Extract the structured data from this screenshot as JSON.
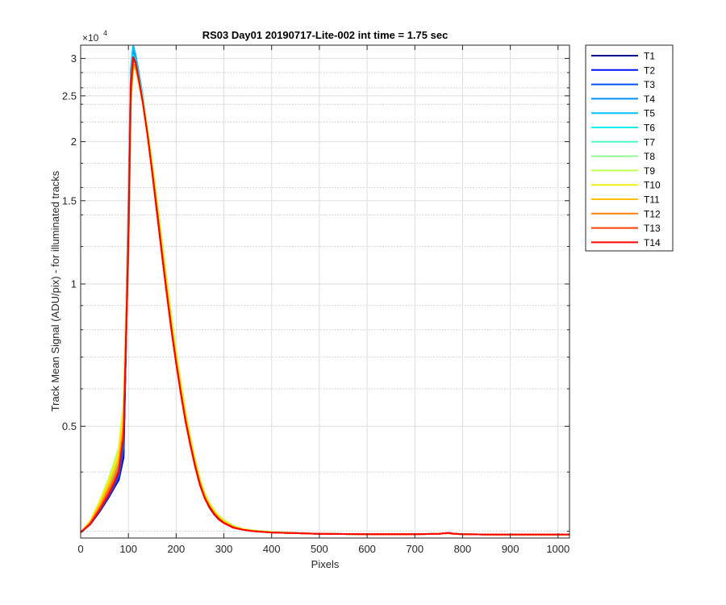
{
  "chart_data": {
    "type": "line",
    "title": "RS03 Day01 20190717-Lite-002 int time = 1.75 sec",
    "xlabel": "Pixels",
    "ylabel": "Track Mean Signal (ADU/pix) - for illuminated tracks",
    "y_exponent_label": "×10",
    "y_exponent_power": "4",
    "y_scale": "log",
    "xlim": [
      0,
      1024
    ],
    "ylim": [
      0.29,
      3.2
    ],
    "x_ticks": [
      0,
      100,
      200,
      300,
      400,
      500,
      600,
      700,
      800,
      900,
      1000
    ],
    "x_tick_labels": [
      "0",
      "100",
      "200",
      "300",
      "400",
      "500",
      "600",
      "700",
      "800",
      "900",
      "1000"
    ],
    "y_ticks": [
      0.5,
      1,
      1.5,
      2,
      2.5,
      3
    ],
    "y_tick_labels": [
      "0.5",
      "1",
      "1.5",
      "2",
      "2.5",
      "3"
    ],
    "y_minor_ticks": [
      0.3,
      0.4,
      0.6,
      0.7,
      0.8,
      0.9,
      1.2,
      1.4,
      1.6,
      1.8,
      2.2,
      2.4,
      2.6,
      2.8,
      3.2
    ],
    "grid": true,
    "legend_position": "outside-top-right",
    "x": [
      0,
      20,
      40,
      60,
      70,
      80,
      90,
      100,
      105,
      110,
      115,
      120,
      130,
      140,
      150,
      160,
      170,
      180,
      190,
      200,
      210,
      220,
      230,
      240,
      250,
      260,
      270,
      280,
      290,
      300,
      320,
      340,
      360,
      380,
      400,
      450,
      500,
      600,
      700,
      750,
      770,
      780,
      800,
      850,
      900,
      950,
      1000,
      1024
    ],
    "series": [
      {
        "name": "T1",
        "color": "#00008f",
        "values": [
          0.298,
          0.31,
          0.33,
          0.355,
          0.37,
          0.385,
          0.43,
          1.25,
          2.6,
          3.02,
          2.96,
          2.8,
          2.45,
          2.08,
          1.72,
          1.41,
          1.16,
          0.96,
          0.8,
          0.68,
          0.585,
          0.51,
          0.455,
          0.41,
          0.375,
          0.352,
          0.336,
          0.325,
          0.317,
          0.312,
          0.305,
          0.302,
          0.3,
          0.299,
          0.298,
          0.297,
          0.296,
          0.2955,
          0.2955,
          0.296,
          0.297,
          0.296,
          0.2955,
          0.295,
          0.295,
          0.295,
          0.295,
          0.295
        ]
      },
      {
        "name": "T2",
        "color": "#0010ff",
        "values": [
          0.298,
          0.31,
          0.33,
          0.356,
          0.372,
          0.388,
          0.44,
          1.3,
          2.65,
          3.05,
          2.98,
          2.82,
          2.47,
          2.1,
          1.74,
          1.42,
          1.17,
          0.965,
          0.805,
          0.683,
          0.588,
          0.512,
          0.457,
          0.412,
          0.377,
          0.353,
          0.337,
          0.326,
          0.318,
          0.312,
          0.305,
          0.302,
          0.3,
          0.299,
          0.298,
          0.297,
          0.296,
          0.2955,
          0.2955,
          0.296,
          0.297,
          0.296,
          0.2955,
          0.295,
          0.295,
          0.295,
          0.295,
          0.295
        ]
      },
      {
        "name": "T3",
        "color": "#0050ff",
        "values": [
          0.298,
          0.311,
          0.331,
          0.358,
          0.374,
          0.392,
          0.45,
          1.35,
          2.7,
          3.08,
          3.0,
          2.84,
          2.48,
          2.11,
          1.75,
          1.43,
          1.175,
          0.97,
          0.81,
          0.686,
          0.59,
          0.514,
          0.458,
          0.413,
          0.378,
          0.354,
          0.338,
          0.327,
          0.318,
          0.313,
          0.306,
          0.302,
          0.3,
          0.299,
          0.298,
          0.297,
          0.296,
          0.2955,
          0.2955,
          0.296,
          0.297,
          0.296,
          0.2955,
          0.295,
          0.295,
          0.295,
          0.295,
          0.295
        ]
      },
      {
        "name": "T4",
        "color": "#0090ff",
        "values": [
          0.298,
          0.311,
          0.333,
          0.362,
          0.38,
          0.4,
          0.47,
          1.45,
          2.8,
          3.15,
          3.04,
          2.86,
          2.5,
          2.12,
          1.76,
          1.44,
          1.18,
          0.975,
          0.813,
          0.689,
          0.592,
          0.516,
          0.46,
          0.414,
          0.379,
          0.355,
          0.338,
          0.327,
          0.319,
          0.313,
          0.306,
          0.302,
          0.3,
          0.299,
          0.298,
          0.297,
          0.296,
          0.2955,
          0.2955,
          0.296,
          0.297,
          0.296,
          0.2955,
          0.295,
          0.295,
          0.295,
          0.295,
          0.295
        ]
      },
      {
        "name": "T5",
        "color": "#00c0ff",
        "values": [
          0.298,
          0.312,
          0.336,
          0.368,
          0.388,
          0.412,
          0.49,
          1.5,
          2.85,
          3.2,
          3.06,
          2.87,
          2.5,
          2.12,
          1.76,
          1.44,
          1.18,
          0.975,
          0.814,
          0.69,
          0.593,
          0.517,
          0.46,
          0.415,
          0.38,
          0.355,
          0.339,
          0.327,
          0.319,
          0.313,
          0.306,
          0.302,
          0.3,
          0.299,
          0.298,
          0.297,
          0.296,
          0.2955,
          0.2955,
          0.296,
          0.297,
          0.296,
          0.2955,
          0.295,
          0.295,
          0.295,
          0.295,
          0.295
        ]
      },
      {
        "name": "T6",
        "color": "#10f0f0",
        "values": [
          0.298,
          0.313,
          0.34,
          0.375,
          0.398,
          0.425,
          0.51,
          1.4,
          2.7,
          3.05,
          2.97,
          2.81,
          2.47,
          2.11,
          1.76,
          1.45,
          1.19,
          0.985,
          0.822,
          0.697,
          0.598,
          0.521,
          0.463,
          0.417,
          0.381,
          0.356,
          0.34,
          0.328,
          0.32,
          0.314,
          0.306,
          0.302,
          0.3,
          0.299,
          0.298,
          0.297,
          0.296,
          0.2955,
          0.2955,
          0.296,
          0.297,
          0.296,
          0.2955,
          0.295,
          0.295,
          0.295,
          0.295,
          0.295
        ]
      },
      {
        "name": "T7",
        "color": "#50ffc0",
        "values": [
          0.298,
          0.314,
          0.343,
          0.38,
          0.405,
          0.435,
          0.53,
          1.35,
          2.6,
          2.98,
          2.93,
          2.79,
          2.46,
          2.11,
          1.77,
          1.46,
          1.2,
          0.995,
          0.83,
          0.703,
          0.603,
          0.525,
          0.466,
          0.419,
          0.383,
          0.357,
          0.341,
          0.329,
          0.321,
          0.315,
          0.307,
          0.303,
          0.3,
          0.299,
          0.298,
          0.297,
          0.296,
          0.2955,
          0.2955,
          0.296,
          0.297,
          0.296,
          0.2955,
          0.295,
          0.295,
          0.295,
          0.295,
          0.295
        ]
      },
      {
        "name": "T8",
        "color": "#90ff90",
        "values": [
          0.298,
          0.315,
          0.347,
          0.39,
          0.418,
          0.45,
          0.56,
          1.3,
          2.5,
          2.92,
          2.9,
          2.78,
          2.48,
          2.15,
          1.82,
          1.51,
          1.25,
          1.035,
          0.86,
          0.725,
          0.62,
          0.537,
          0.475,
          0.426,
          0.388,
          0.361,
          0.344,
          0.332,
          0.323,
          0.317,
          0.308,
          0.303,
          0.301,
          0.3,
          0.299,
          0.297,
          0.296,
          0.2955,
          0.2955,
          0.296,
          0.297,
          0.296,
          0.2955,
          0.295,
          0.295,
          0.295,
          0.295,
          0.295
        ]
      },
      {
        "name": "T9",
        "color": "#c0ff50",
        "values": [
          0.298,
          0.315,
          0.346,
          0.388,
          0.415,
          0.447,
          0.555,
          1.25,
          2.45,
          2.88,
          2.87,
          2.75,
          2.46,
          2.13,
          1.8,
          1.5,
          1.24,
          1.03,
          0.855,
          0.722,
          0.618,
          0.536,
          0.474,
          0.425,
          0.388,
          0.361,
          0.344,
          0.332,
          0.323,
          0.317,
          0.308,
          0.303,
          0.301,
          0.3,
          0.299,
          0.297,
          0.296,
          0.2955,
          0.2955,
          0.296,
          0.297,
          0.296,
          0.2955,
          0.295,
          0.295,
          0.295,
          0.295,
          0.295
        ]
      },
      {
        "name": "T10",
        "color": "#f0f010",
        "values": [
          0.298,
          0.314,
          0.345,
          0.385,
          0.41,
          0.44,
          0.54,
          1.2,
          2.4,
          2.85,
          2.85,
          2.73,
          2.44,
          2.11,
          1.78,
          1.48,
          1.22,
          1.01,
          0.843,
          0.713,
          0.611,
          0.531,
          0.47,
          0.422,
          0.386,
          0.359,
          0.343,
          0.331,
          0.322,
          0.316,
          0.307,
          0.303,
          0.301,
          0.299,
          0.298,
          0.297,
          0.296,
          0.2955,
          0.2955,
          0.296,
          0.297,
          0.296,
          0.2955,
          0.295,
          0.295,
          0.295,
          0.295,
          0.295
        ]
      },
      {
        "name": "T11",
        "color": "#ffc000",
        "values": [
          0.298,
          0.313,
          0.341,
          0.378,
          0.4,
          0.428,
          0.515,
          1.18,
          2.42,
          2.88,
          2.86,
          2.72,
          2.42,
          2.08,
          1.75,
          1.45,
          1.19,
          0.985,
          0.822,
          0.697,
          0.598,
          0.521,
          0.463,
          0.417,
          0.381,
          0.356,
          0.34,
          0.328,
          0.32,
          0.314,
          0.306,
          0.302,
          0.3,
          0.299,
          0.298,
          0.297,
          0.296,
          0.2955,
          0.2955,
          0.296,
          0.297,
          0.296,
          0.2955,
          0.295,
          0.295,
          0.295,
          0.295,
          0.295
        ]
      },
      {
        "name": "T12",
        "color": "#ff8000",
        "values": [
          0.298,
          0.312,
          0.337,
          0.37,
          0.39,
          0.415,
          0.495,
          1.15,
          2.45,
          2.92,
          2.89,
          2.74,
          2.42,
          2.07,
          1.73,
          1.43,
          1.175,
          0.97,
          0.81,
          0.686,
          0.59,
          0.514,
          0.458,
          0.413,
          0.378,
          0.354,
          0.338,
          0.327,
          0.318,
          0.313,
          0.306,
          0.302,
          0.3,
          0.299,
          0.298,
          0.297,
          0.296,
          0.2955,
          0.2955,
          0.296,
          0.297,
          0.296,
          0.2955,
          0.295,
          0.295,
          0.295,
          0.295,
          0.295
        ]
      },
      {
        "name": "T13",
        "color": "#ff4000",
        "values": [
          0.298,
          0.311,
          0.334,
          0.364,
          0.382,
          0.404,
          0.48,
          1.2,
          2.55,
          2.98,
          2.93,
          2.77,
          2.43,
          2.07,
          1.72,
          1.42,
          1.165,
          0.962,
          0.803,
          0.681,
          0.586,
          0.511,
          0.456,
          0.411,
          0.376,
          0.352,
          0.337,
          0.326,
          0.318,
          0.312,
          0.305,
          0.302,
          0.3,
          0.299,
          0.298,
          0.297,
          0.296,
          0.2955,
          0.2955,
          0.296,
          0.297,
          0.296,
          0.2955,
          0.295,
          0.295,
          0.295,
          0.295,
          0.295
        ]
      },
      {
        "name": "T14",
        "color": "#ff0000",
        "values": [
          0.298,
          0.31,
          0.332,
          0.36,
          0.378,
          0.4,
          0.475,
          1.28,
          2.65,
          3.02,
          2.95,
          2.78,
          2.43,
          2.07,
          1.72,
          1.42,
          1.165,
          0.962,
          0.803,
          0.681,
          0.586,
          0.511,
          0.456,
          0.411,
          0.376,
          0.352,
          0.337,
          0.326,
          0.318,
          0.312,
          0.305,
          0.302,
          0.3,
          0.299,
          0.298,
          0.297,
          0.296,
          0.2955,
          0.2955,
          0.296,
          0.2975,
          0.2965,
          0.2955,
          0.295,
          0.295,
          0.295,
          0.295,
          0.295
        ]
      }
    ]
  }
}
